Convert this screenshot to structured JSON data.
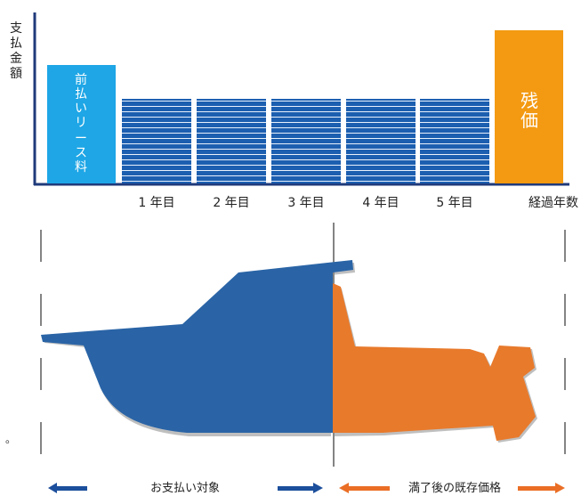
{
  "y_axis_label": [
    "支",
    "払",
    "金",
    "額"
  ],
  "bars": {
    "prepaid": {
      "label": [
        "前",
        "払",
        "い",
        "リ",
        "ー",
        "ス",
        "料"
      ]
    },
    "years": [
      {
        "label": "1 年目"
      },
      {
        "label": "2 年目"
      },
      {
        "label": "3 年目"
      },
      {
        "label": "4 年目"
      },
      {
        "label": "5 年目"
      }
    ],
    "residual": {
      "label": [
        "残",
        "価"
      ]
    }
  },
  "x_axis_label": "経過年数",
  "bottom": {
    "left_label": "お支払い対象",
    "right_label": "満了後の既存価格"
  },
  "stray_mark": "。",
  "colors": {
    "prepaid": "#1ea6e6",
    "monthly": "#1c5fb0",
    "residual": "#f39a12",
    "boat_blue": "#2a64a6",
    "boat_orange": "#e87a2c",
    "arrow_blue": "#1c4f9c",
    "arrow_orange": "#ea6e25",
    "axis": "#1f3a7a"
  }
}
